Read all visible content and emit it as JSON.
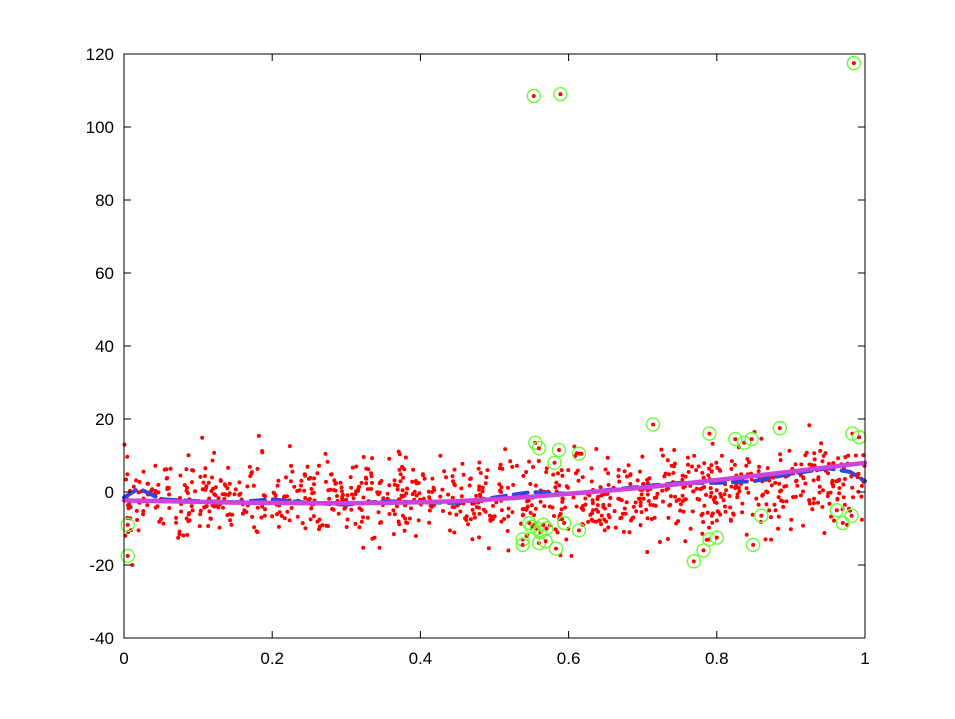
{
  "chart_data": {
    "type": "scatter",
    "title": "",
    "xlabel": "",
    "ylabel": "",
    "xlim": [
      0,
      1
    ],
    "ylim": [
      -40,
      120
    ],
    "x_ticks": [
      "0",
      "0.2",
      "0.4",
      "0.6",
      "0.8",
      "1"
    ],
    "y_ticks": [
      "-40",
      "-20",
      "0",
      "20",
      "40",
      "60",
      "80",
      "100",
      "120"
    ],
    "grid": false,
    "legend": "none",
    "colors": {
      "points": "#ff0000",
      "outlier_rings": "#66ff33",
      "dashed_fit": "#3344dd",
      "solid_fit": "#cc44dd"
    },
    "scatter_points": {
      "color": "#ff0000",
      "count": 1000,
      "approximate_trend": "y ≈ -2 + 10·max(0, x-0.5)^1.2 with noise σ≈6",
      "x_range": [
        0,
        1
      ],
      "y_typical_range": [
        -20,
        22
      ]
    },
    "outliers": [
      {
        "x": 0.005,
        "y": -9
      },
      {
        "x": 0.005,
        "y": -17.5
      },
      {
        "x": 0.553,
        "y": 108.5
      },
      {
        "x": 0.589,
        "y": 109
      },
      {
        "x": 0.985,
        "y": 117.5
      },
      {
        "x": 0.555,
        "y": 13.5
      },
      {
        "x": 0.56,
        "y": 12
      },
      {
        "x": 0.587,
        "y": 11.5
      },
      {
        "x": 0.614,
        "y": 10.5
      },
      {
        "x": 0.581,
        "y": 8
      },
      {
        "x": 0.714,
        "y": 18.5
      },
      {
        "x": 0.79,
        "y": 16
      },
      {
        "x": 0.825,
        "y": 14.5
      },
      {
        "x": 0.837,
        "y": 13.5
      },
      {
        "x": 0.847,
        "y": 14.5
      },
      {
        "x": 0.885,
        "y": 17.5
      },
      {
        "x": 0.983,
        "y": 16
      },
      {
        "x": 0.992,
        "y": 15
      },
      {
        "x": 0.538,
        "y": -13
      },
      {
        "x": 0.538,
        "y": -14.5
      },
      {
        "x": 0.547,
        "y": -8.5
      },
      {
        "x": 0.55,
        "y": -9.5
      },
      {
        "x": 0.557,
        "y": -10
      },
      {
        "x": 0.562,
        "y": -11
      },
      {
        "x": 0.566,
        "y": -9
      },
      {
        "x": 0.57,
        "y": -10
      },
      {
        "x": 0.56,
        "y": -14
      },
      {
        "x": 0.569,
        "y": -13.5
      },
      {
        "x": 0.583,
        "y": -15.5
      },
      {
        "x": 0.594,
        "y": -8.5
      },
      {
        "x": 0.614,
        "y": -10.5
      },
      {
        "x": 0.769,
        "y": -19
      },
      {
        "x": 0.782,
        "y": -16
      },
      {
        "x": 0.79,
        "y": -13
      },
      {
        "x": 0.8,
        "y": -12.5
      },
      {
        "x": 0.849,
        "y": -14.5
      },
      {
        "x": 0.86,
        "y": -6.5
      },
      {
        "x": 0.962,
        "y": -5
      },
      {
        "x": 0.97,
        "y": -8.5
      },
      {
        "x": 0.982,
        "y": -6.5
      }
    ],
    "series": [
      {
        "style": "dashed",
        "color": "#3344dd",
        "x": [
          0,
          0.02,
          0.05,
          0.1,
          0.15,
          0.2,
          0.25,
          0.3,
          0.35,
          0.4,
          0.45,
          0.5,
          0.55,
          0.6,
          0.65,
          0.7,
          0.75,
          0.8,
          0.85,
          0.9,
          0.95,
          0.98,
          1.0
        ],
        "y": [
          -1.5,
          1,
          -2,
          -2.5,
          -2.8,
          -2,
          -3,
          -3.5,
          -2.5,
          -2.8,
          -3,
          -1.5,
          0,
          -0.5,
          0.5,
          1.5,
          2.5,
          2.5,
          3,
          5,
          6.5,
          5.5,
          3
        ]
      },
      {
        "style": "solid",
        "color": "#cc44dd",
        "x": [
          0,
          0.05,
          0.1,
          0.15,
          0.2,
          0.25,
          0.3,
          0.35,
          0.4,
          0.45,
          0.5,
          0.55,
          0.6,
          0.65,
          0.7,
          0.75,
          0.8,
          0.85,
          0.9,
          0.95,
          1.0
        ],
        "y": [
          -2.3,
          -2.5,
          -2.7,
          -2.9,
          -3,
          -3.1,
          -3.1,
          -3,
          -2.8,
          -2.5,
          -2,
          -1.3,
          -0.5,
          0.3,
          1.2,
          2.2,
          3.3,
          4.4,
          5.6,
          6.8,
          8
        ]
      }
    ]
  }
}
